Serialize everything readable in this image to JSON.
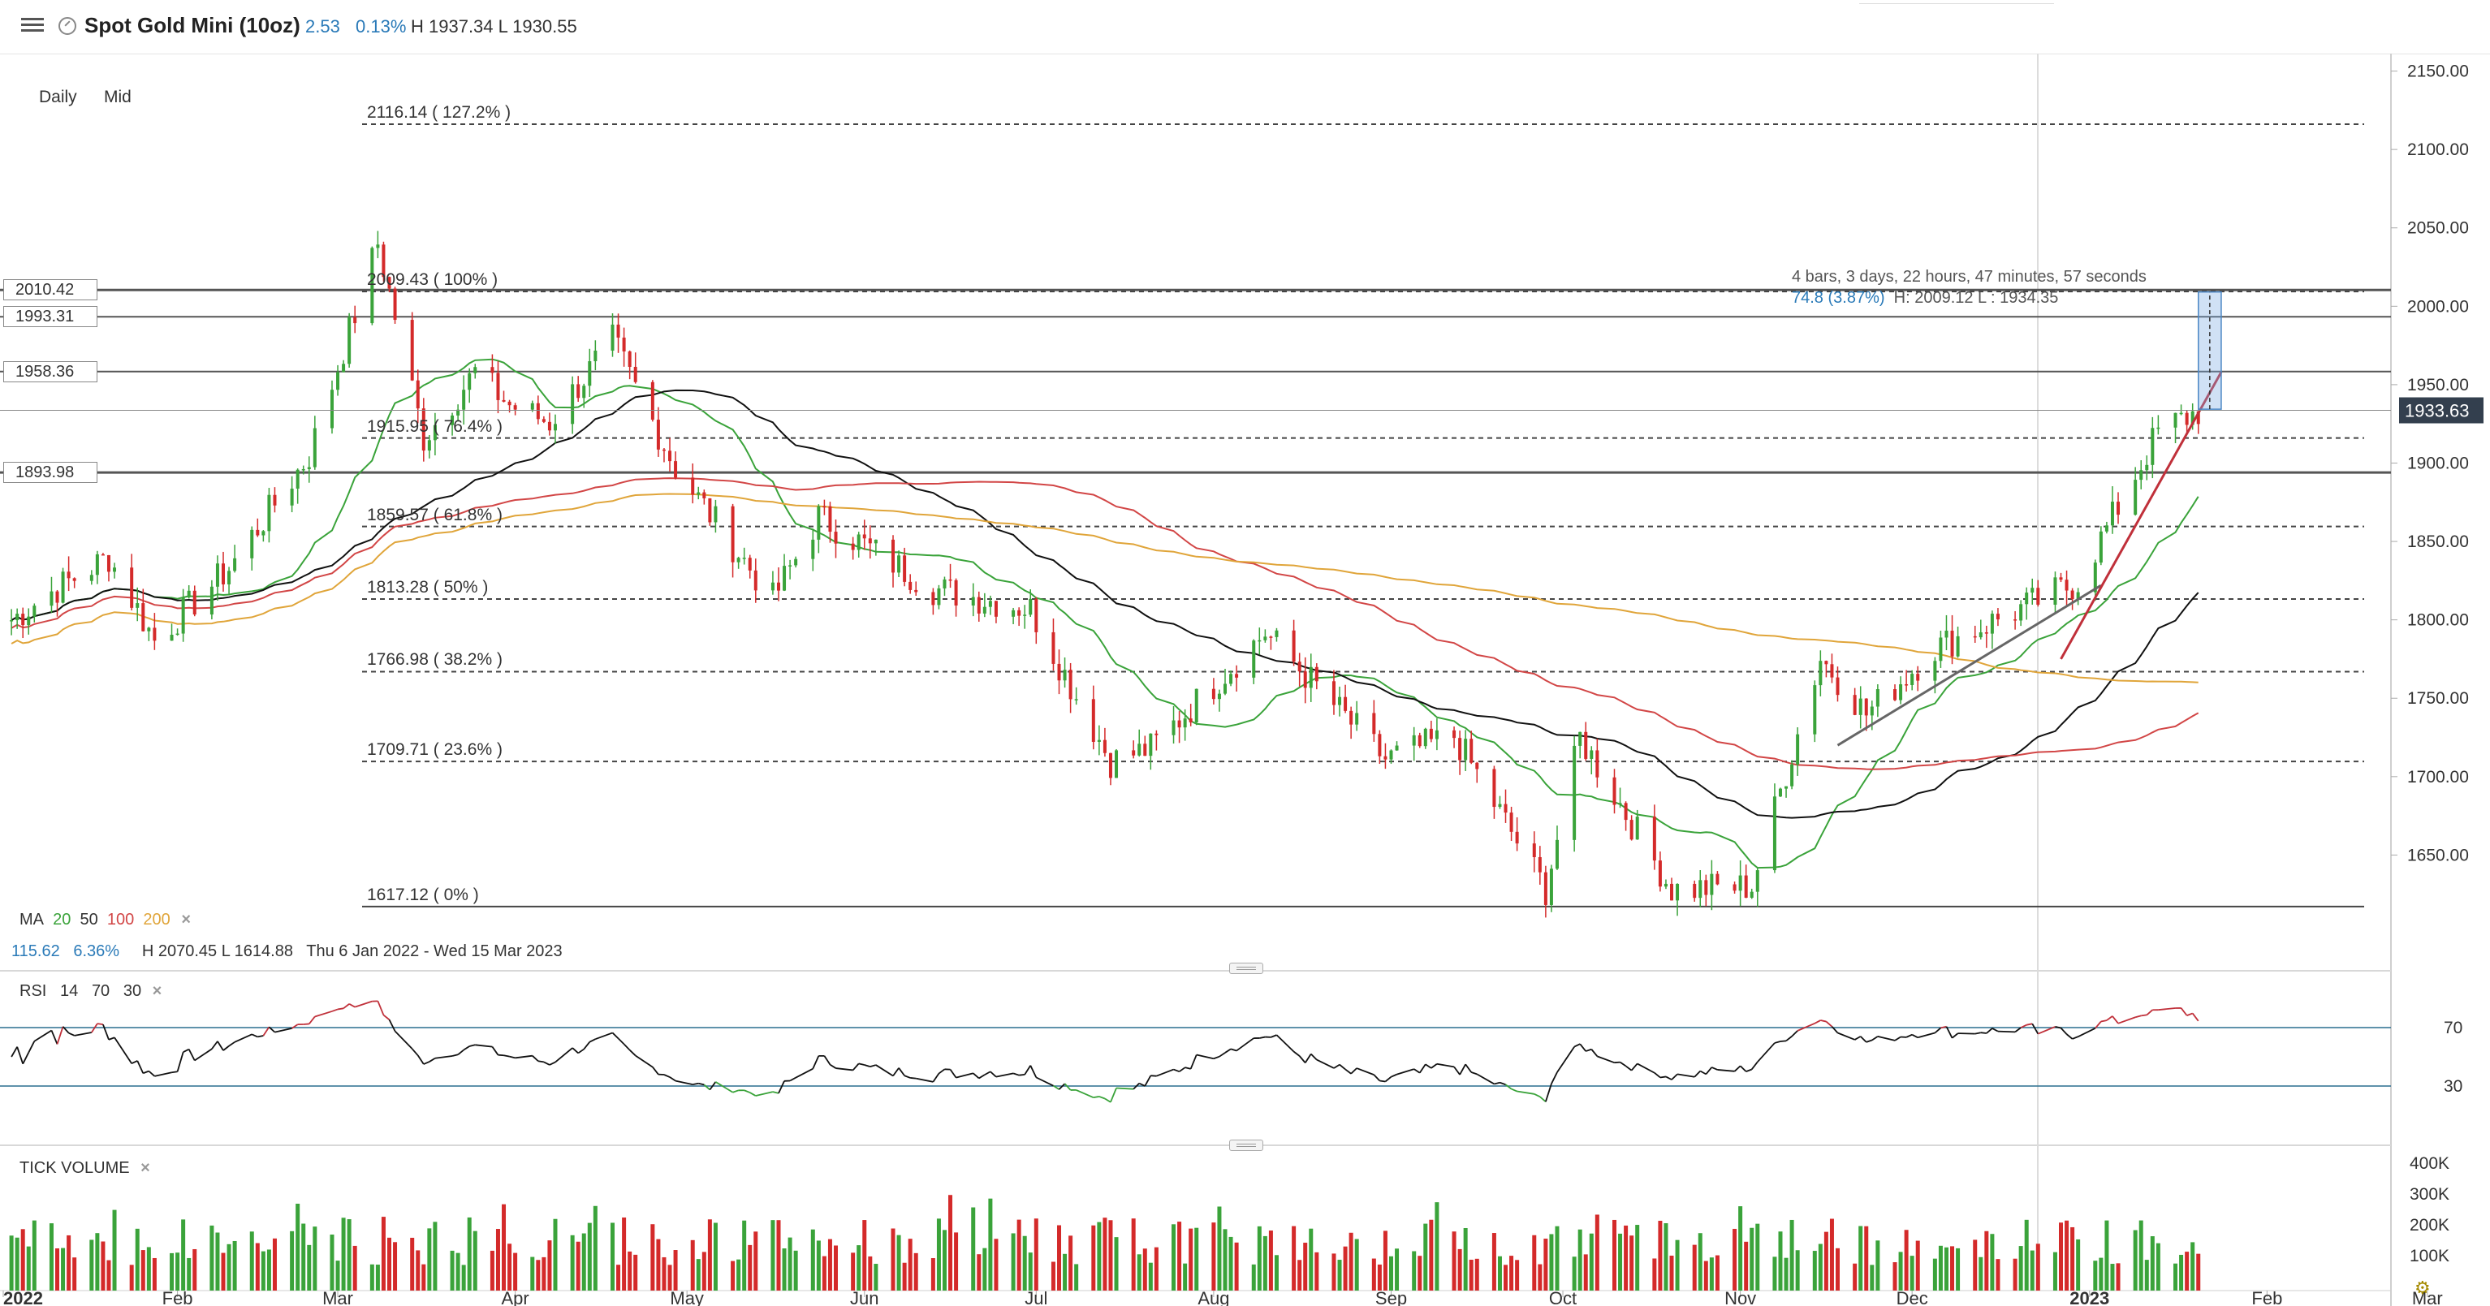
{
  "header": {
    "title": "Spot Gold Mini (10oz)",
    "change": "2.53",
    "change_pct": "0.13%",
    "high_low": "H 1937.34 L 1930.55",
    "menu_icon": "hamburger-menu-icon",
    "clock_icon": "market-closed-clock-icon"
  },
  "toolbar": {
    "interval": "Daily",
    "price_type": "Mid"
  },
  "colors": {
    "up": "#3aa33a",
    "down": "#d42a2a",
    "ma20": "#3aa33a",
    "ma50": "#111111",
    "ma100": "#d24646",
    "ma200": "#e0a53a",
    "accent": "#2a7ab8"
  },
  "ma_legend": {
    "label": "MA",
    "p20": "20",
    "p50": "50",
    "p100": "100",
    "p200": "200",
    "close": "×"
  },
  "range_info": {
    "change": "115.62",
    "change_pct": "6.36%",
    "high_low": "H 2070.45  L 1614.88",
    "dates": "Thu 6 Jan 2022 - Wed 15 Mar 2023"
  },
  "measure_tool": {
    "line1": "4 bars, 3 days, 22 hours, 47 minutes, 57 seconds",
    "change": "74.8 (3.87%)",
    "hl": "H: 2009.12 L : 1934.35"
  },
  "price_axis": {
    "ticks": [
      "2150.00",
      "2100.00",
      "2050.00",
      "2000.00",
      "1950.00",
      "1900.00",
      "1850.00",
      "1800.00",
      "1750.00",
      "1700.00",
      "1650.00"
    ],
    "current_price": "1933.63"
  },
  "level_labels": [
    "2010.42",
    "1993.31",
    "1958.36",
    "1893.98"
  ],
  "fib_labels": [
    "2116.14 ( 127.2% )",
    "2009.43 ( 100% )",
    "1915.95 ( 76.4% )",
    "1859.57 ( 61.8% )",
    "1813.28 ( 50% )",
    "1766.98 ( 38.2% )",
    "1709.71 ( 23.6% )",
    "1617.12 ( 0% )"
  ],
  "rsi": {
    "label": "RSI",
    "period": "14",
    "upper": "70",
    "lower": "30",
    "close": "×",
    "axis_ticks": [
      "70",
      "30"
    ]
  },
  "volume": {
    "label": "TICK VOLUME",
    "close": "×",
    "axis_ticks": [
      "400K",
      "300K",
      "200K",
      "100K"
    ]
  },
  "time_axis": [
    "2022",
    "Feb",
    "Mar",
    "Apr",
    "May",
    "Jun",
    "Jul",
    "Aug",
    "Sep",
    "Oct",
    "Nov",
    "Dec",
    "2023",
    "Feb",
    "Mar"
  ],
  "chart_data": {
    "type": "candlestick",
    "title": "Spot Gold Mini (10oz)",
    "interval": "Daily",
    "ylim": [
      1600,
      2170
    ],
    "y_ticks": [
      1650,
      1700,
      1750,
      1800,
      1850,
      1900,
      1950,
      2000,
      2050,
      2100,
      2150
    ],
    "x_range": [
      "2022-01-01",
      "2023-03-05"
    ],
    "monthly_closes": [
      {
        "month": "2022-01",
        "close": 1797
      },
      {
        "month": "2022-02",
        "close": 1909
      },
      {
        "month": "2022-03",
        "close": 1937
      },
      {
        "month": "2022-04",
        "close": 1897
      },
      {
        "month": "2022-05",
        "close": 1848
      },
      {
        "month": "2022-06",
        "close": 1807
      },
      {
        "month": "2022-07",
        "close": 1766
      },
      {
        "month": "2022-08",
        "close": 1711
      },
      {
        "month": "2022-09",
        "close": 1661
      },
      {
        "month": "2022-10",
        "close": 1634
      },
      {
        "month": "2022-11",
        "close": 1768
      },
      {
        "month": "2022-12",
        "close": 1824
      },
      {
        "month": "2023-01",
        "close": 1933.63
      }
    ],
    "horizontal_levels": [
      2010.42,
      1993.31,
      1958.36,
      1893.98
    ],
    "fibonacci_levels": [
      {
        "price": 2116.14,
        "ratio": "127.2%"
      },
      {
        "price": 2009.43,
        "ratio": "100%"
      },
      {
        "price": 1915.95,
        "ratio": "76.4%"
      },
      {
        "price": 1859.57,
        "ratio": "61.8%"
      },
      {
        "price": 1813.28,
        "ratio": "50%"
      },
      {
        "price": 1766.98,
        "ratio": "38.2%"
      },
      {
        "price": 1709.71,
        "ratio": "23.6%"
      },
      {
        "price": 1617.12,
        "ratio": "0%"
      }
    ],
    "moving_averages": [
      "20",
      "50",
      "100",
      "200"
    ],
    "rsi_levels": [
      70,
      30
    ],
    "volume_ticks": [
      "100K",
      "200K",
      "300K",
      "400K"
    ]
  }
}
